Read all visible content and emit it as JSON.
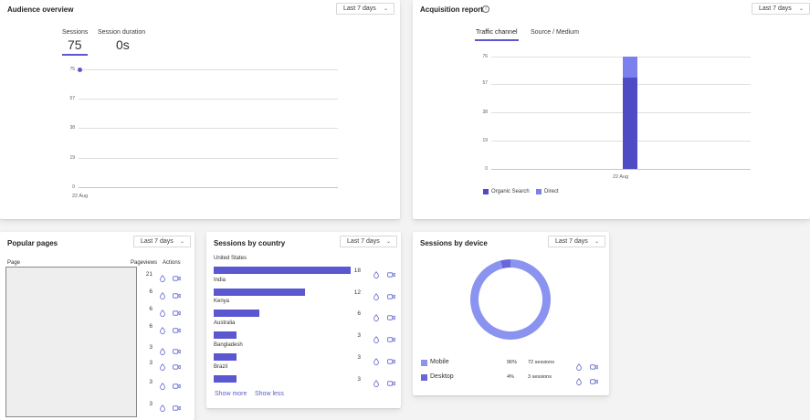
{
  "audience": {
    "title": "Audience overview",
    "range": "Last 7 days",
    "metrics": [
      {
        "label": "Sessions",
        "value": "75"
      },
      {
        "label": "Session duration",
        "value": "0s"
      }
    ],
    "y_ticks": [
      "75",
      "57",
      "38",
      "19",
      "0"
    ],
    "x_label": "22 Aug"
  },
  "acquisition": {
    "title": "Acquisition report",
    "range": "Last 7 days",
    "tabs": [
      "Traffic channel",
      "Source / Medium"
    ],
    "y_ticks": [
      "76",
      "57",
      "38",
      "19",
      "0"
    ],
    "x_label": "22 Aug",
    "legend": [
      "Organic Search",
      "Direct"
    ]
  },
  "popular": {
    "title": "Popular pages",
    "range": "Last 7 days",
    "col_page": "Page",
    "col_views": "Pageviews",
    "col_actions": "Actions",
    "rows": [
      "21",
      "6",
      "6",
      "6",
      "3",
      "3",
      "3",
      "3"
    ]
  },
  "country": {
    "title": "Sessions by country",
    "range": "Last 7 days",
    "rows": [
      {
        "name": "United States",
        "value": "18"
      },
      {
        "name": "India",
        "value": "12"
      },
      {
        "name": "Kenya",
        "value": "6"
      },
      {
        "name": "Australia",
        "value": "3"
      },
      {
        "name": "Bangladesh",
        "value": "3"
      },
      {
        "name": "Brazil",
        "value": "3"
      }
    ],
    "show_more": "Show more",
    "show_less": "Show less"
  },
  "device": {
    "title": "Sessions by device",
    "range": "Last 7 days",
    "rows": [
      {
        "name": "Mobile",
        "pct": "96%",
        "sessions": "72 sessions",
        "color": "#8b93f0"
      },
      {
        "name": "Desktop",
        "pct": "4%",
        "sessions": "3 sessions",
        "color": "#6a66d9"
      }
    ]
  },
  "chart_data": [
    {
      "type": "line",
      "title": "Audience overview",
      "x": [
        "22 Aug"
      ],
      "series": [
        {
          "name": "Sessions",
          "values": [
            75
          ]
        }
      ],
      "ylim": [
        0,
        75
      ]
    },
    {
      "type": "bar",
      "title": "Acquisition report",
      "categories": [
        "22 Aug"
      ],
      "series": [
        {
          "name": "Organic Search",
          "values": [
            62
          ],
          "color": "#4f4bc4"
        },
        {
          "name": "Direct",
          "values": [
            14
          ],
          "color": "#7b80ec"
        }
      ],
      "ylim": [
        0,
        76
      ]
    },
    {
      "type": "bar",
      "title": "Sessions by country",
      "categories": [
        "United States",
        "India",
        "Kenya",
        "Australia",
        "Bangladesh",
        "Brazil"
      ],
      "values": [
        18,
        12,
        6,
        3,
        3,
        3
      ]
    },
    {
      "type": "pie",
      "title": "Sessions by device",
      "categories": [
        "Mobile",
        "Desktop"
      ],
      "values": [
        72,
        3
      ]
    }
  ],
  "colors": {
    "accent": "#5b57d1",
    "organic": "#4f4bc4",
    "direct": "#7b80ec",
    "mobile": "#8b93f0",
    "desktop": "#6a66d9"
  }
}
